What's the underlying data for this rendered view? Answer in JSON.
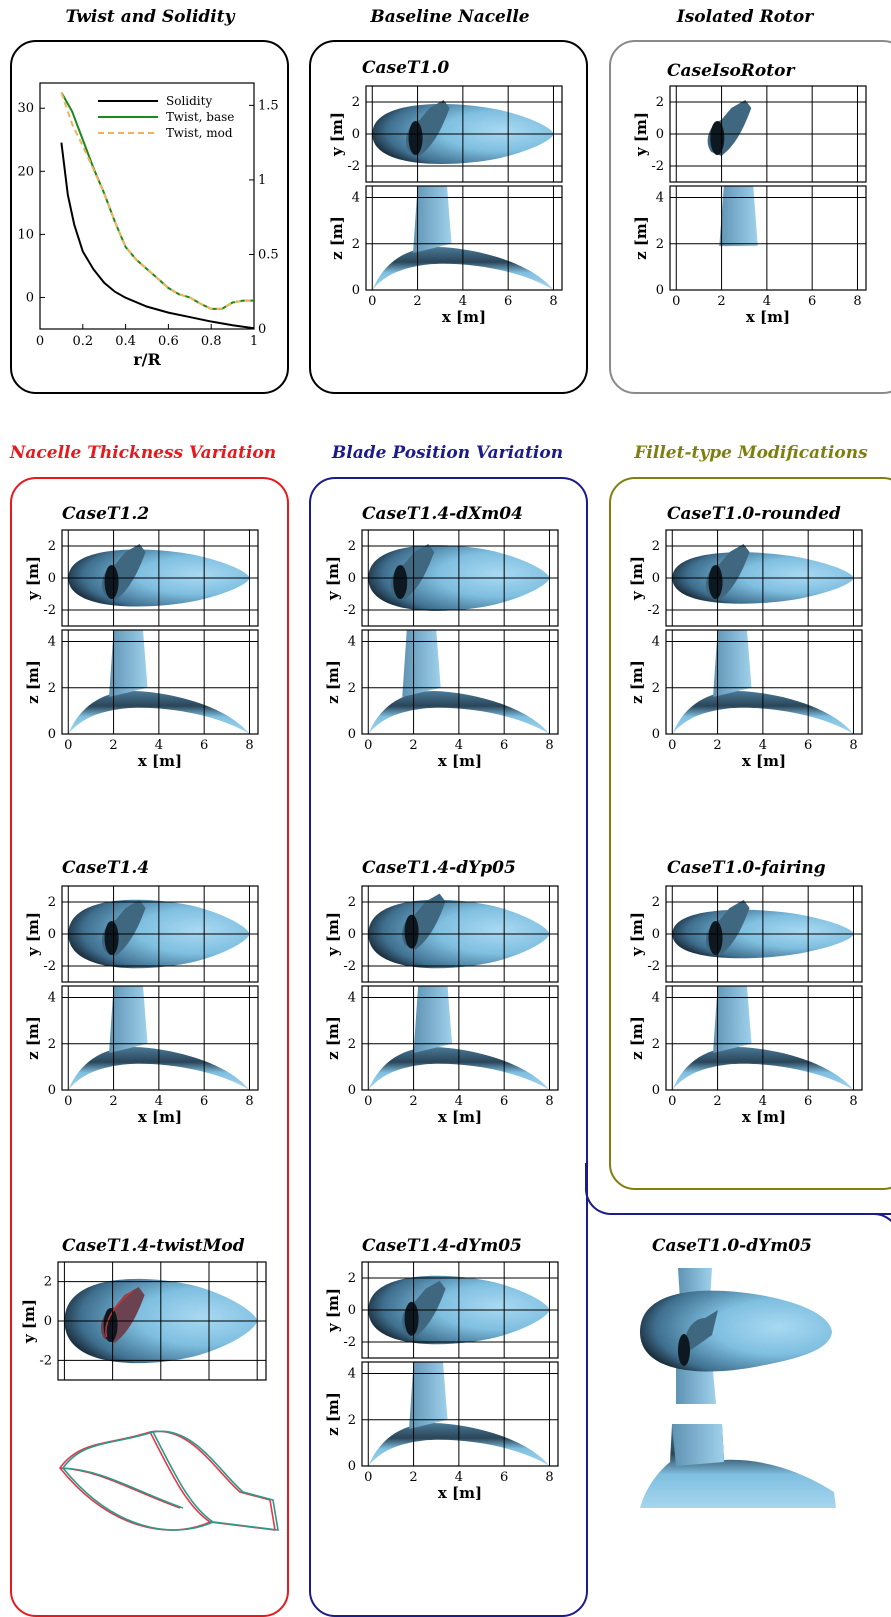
{
  "sections": {
    "twist": {
      "title": "Twist and Solidity"
    },
    "baseline": {
      "title": "Baseline Nacelle",
      "case": "CaseT1.0"
    },
    "isolated": {
      "title": "Isolated Rotor",
      "case": "CaseIsoRotor"
    },
    "thickness": {
      "title": "Nacelle Thickness Variation",
      "color": "#e8191c",
      "cases": [
        "CaseT1.2",
        "CaseT1.4",
        "CaseT1.4-twistMod"
      ]
    },
    "position": {
      "title": "Blade Position Variation",
      "color": "#1b1b8c",
      "cases": [
        "CaseT1.4-dXm04",
        "CaseT1.4-dYp05",
        "CaseT1.4-dYm05"
      ]
    },
    "fillet": {
      "title": "Fillet-type Modifications",
      "color": "#7f7f10",
      "cases": [
        "CaseT1.0-rounded",
        "CaseT1.0-fairing"
      ]
    },
    "extra": {
      "case": "CaseT1.0-dYm05"
    }
  },
  "axes": {
    "y_label": "y [m]",
    "z_label": "z [m]",
    "x_label": "x [m]",
    "x_ticks": [
      "0",
      "2",
      "4",
      "6",
      "8"
    ],
    "y_ticks": [
      "2",
      "0",
      "-2"
    ],
    "z_ticks": [
      "4",
      "2",
      "0"
    ]
  },
  "chart_data": {
    "type": "line",
    "xlabel": "r/R",
    "xlim": [
      0,
      1
    ],
    "x_ticks": [
      "0",
      "0.2",
      "0.4",
      "0.6",
      "0.8",
      "1"
    ],
    "y_left_ticks": [
      "30",
      "20",
      "10",
      "0"
    ],
    "y_left_lim": [
      -5,
      34
    ],
    "y_right_ticks": [
      "1.5",
      "1",
      "0.5",
      "0"
    ],
    "y_right_lim": [
      0,
      1.65
    ],
    "series": [
      {
        "name": "Solidity",
        "axis": "right",
        "color": "#000000",
        "style": "solid",
        "x": [
          0.1,
          0.13,
          0.16,
          0.2,
          0.25,
          0.3,
          0.35,
          0.4,
          0.5,
          0.6,
          0.7,
          0.8,
          0.9,
          1.0
        ],
        "values": [
          1.25,
          0.9,
          0.7,
          0.52,
          0.4,
          0.31,
          0.25,
          0.21,
          0.15,
          0.11,
          0.08,
          0.05,
          0.025,
          0.005
        ]
      },
      {
        "name": "Twist, base",
        "axis": "left",
        "color": "#1a8a1a",
        "style": "solid",
        "x": [
          0.1,
          0.15,
          0.2,
          0.25,
          0.3,
          0.35,
          0.4,
          0.45,
          0.5,
          0.55,
          0.6,
          0.65,
          0.7,
          0.75,
          0.8,
          0.85,
          0.9,
          0.95,
          1.0
        ],
        "values": [
          32.5,
          29.5,
          25,
          20.5,
          16.5,
          12,
          8,
          6,
          4.5,
          3,
          1.5,
          0.5,
          0,
          -1,
          -1.8,
          -1.8,
          -0.8,
          -0.5,
          -0.5
        ]
      },
      {
        "name": "Twist, mod",
        "axis": "left",
        "color": "#f2b25c",
        "style": "dashed",
        "x": [
          0.1,
          0.15,
          0.2,
          0.25,
          0.3,
          0.35,
          0.4,
          0.45,
          0.5,
          0.55,
          0.6,
          0.65,
          0.7,
          0.75,
          0.8,
          0.85,
          0.9,
          0.95,
          1.0
        ],
        "values": [
          32.5,
          27.5,
          24,
          20.3,
          16.5,
          12,
          8,
          6,
          4.5,
          3,
          1.5,
          0.5,
          0,
          -1,
          -1.8,
          -1.8,
          -0.8,
          -0.5,
          -0.5
        ]
      }
    ]
  }
}
